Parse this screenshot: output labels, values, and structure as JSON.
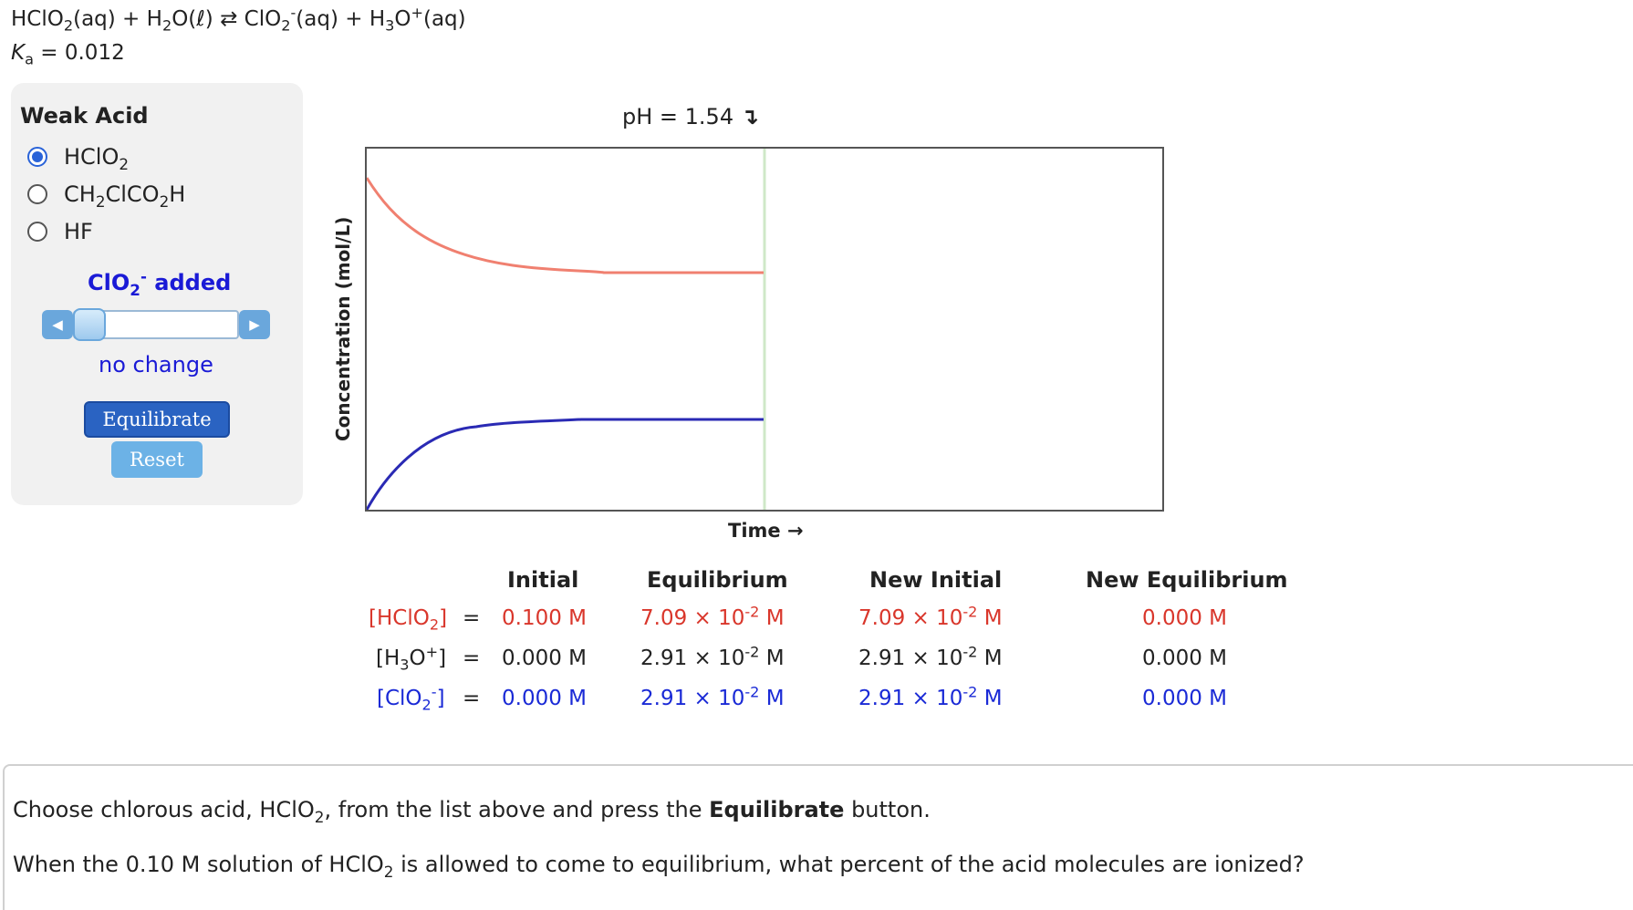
{
  "equation": {
    "reactant1": "HClO",
    "reactant1_sub": "2",
    "reactant1_state": "(aq) + ",
    "reactant2": "H",
    "reactant2_sub": "2",
    "reactant2_tail": "O(ℓ) ⇄ ",
    "product1": "ClO",
    "product1_sub": "2",
    "product1_sup": "-",
    "product1_state": "(aq) + ",
    "product2": "H",
    "product2_sub": "3",
    "product2_mid": "O",
    "product2_sup": "+",
    "product2_state": "(aq)"
  },
  "ka": {
    "symbol": "K",
    "sub": "a",
    "value": " = 0.012"
  },
  "panel": {
    "title": "Weak Acid",
    "options": [
      {
        "pre": "HClO",
        "sub": "2",
        "post": "",
        "selected": true
      },
      {
        "pre": "CH",
        "sub": "2",
        "mid": "ClCO",
        "sub2": "2",
        "post": "H",
        "selected": false
      },
      {
        "pre": "HF",
        "selected": false
      }
    ],
    "added": {
      "pre": "ClO",
      "sub": "2",
      "sup": "-",
      "post": " added"
    },
    "slider_level": 0,
    "status": "no change",
    "equilibrate_label": "Equilibrate",
    "reset_label": "Reset"
  },
  "ph_label": "pH = 1.54",
  "ph_arrow": "↴",
  "chart": {
    "ylabel": "Concentration (mol/L)",
    "xlabel": "Time →",
    "colors": {
      "hclo2": "#f08070",
      "h3o": "#2a2ab4",
      "marker": "#cfe8c8"
    }
  },
  "table": {
    "headers": [
      "Initial",
      "Equilibrium",
      "New Initial",
      "New Equilibrium"
    ],
    "rows": [
      {
        "label_pre": "[HClO",
        "label_sub": "2",
        "label_sup": "",
        "label_post": "]",
        "eq": "=",
        "initial": "0.100 M",
        "eq_mant": "7.09 × 10",
        "eq_exp": "-2",
        "eq_unit": " M",
        "ni_mant": "7.09 × 10",
        "ni_exp": "-2",
        "ni_unit": " M",
        "ne": "0.000 M",
        "color": "red"
      },
      {
        "label_pre": "[H",
        "label_sub": "3",
        "label_mid": "O",
        "label_sup": "+",
        "label_post": "]",
        "eq": "=",
        "initial": "0.000 M",
        "eq_mant": "2.91 × 10",
        "eq_exp": "-2",
        "eq_unit": " M",
        "ni_mant": "2.91 × 10",
        "ni_exp": "-2",
        "ni_unit": " M",
        "ne": "0.000 M",
        "color": "black"
      },
      {
        "label_pre": "[ClO",
        "label_sub": "2",
        "label_sup": "-",
        "label_post": "]",
        "eq": "=",
        "initial": "0.000 M",
        "eq_mant": "2.91 × 10",
        "eq_exp": "-2",
        "eq_unit": " M",
        "ni_mant": "2.91 × 10",
        "ni_exp": "-2",
        "ni_unit": " M",
        "ne": "0.000 M",
        "color": "blue"
      }
    ]
  },
  "question": {
    "line1_pre": "Choose chlorous acid, HClO",
    "line1_sub": "2",
    "line1_mid": ", from the list above and press the ",
    "line1_bold": "Equilibrate",
    "line1_post": " button.",
    "line2_pre": "When the 0.10 M solution of HClO",
    "line2_sub": "2",
    "line2_post": " is allowed to come to equilibrium, what percent of the acid molecules are ionized?"
  }
}
